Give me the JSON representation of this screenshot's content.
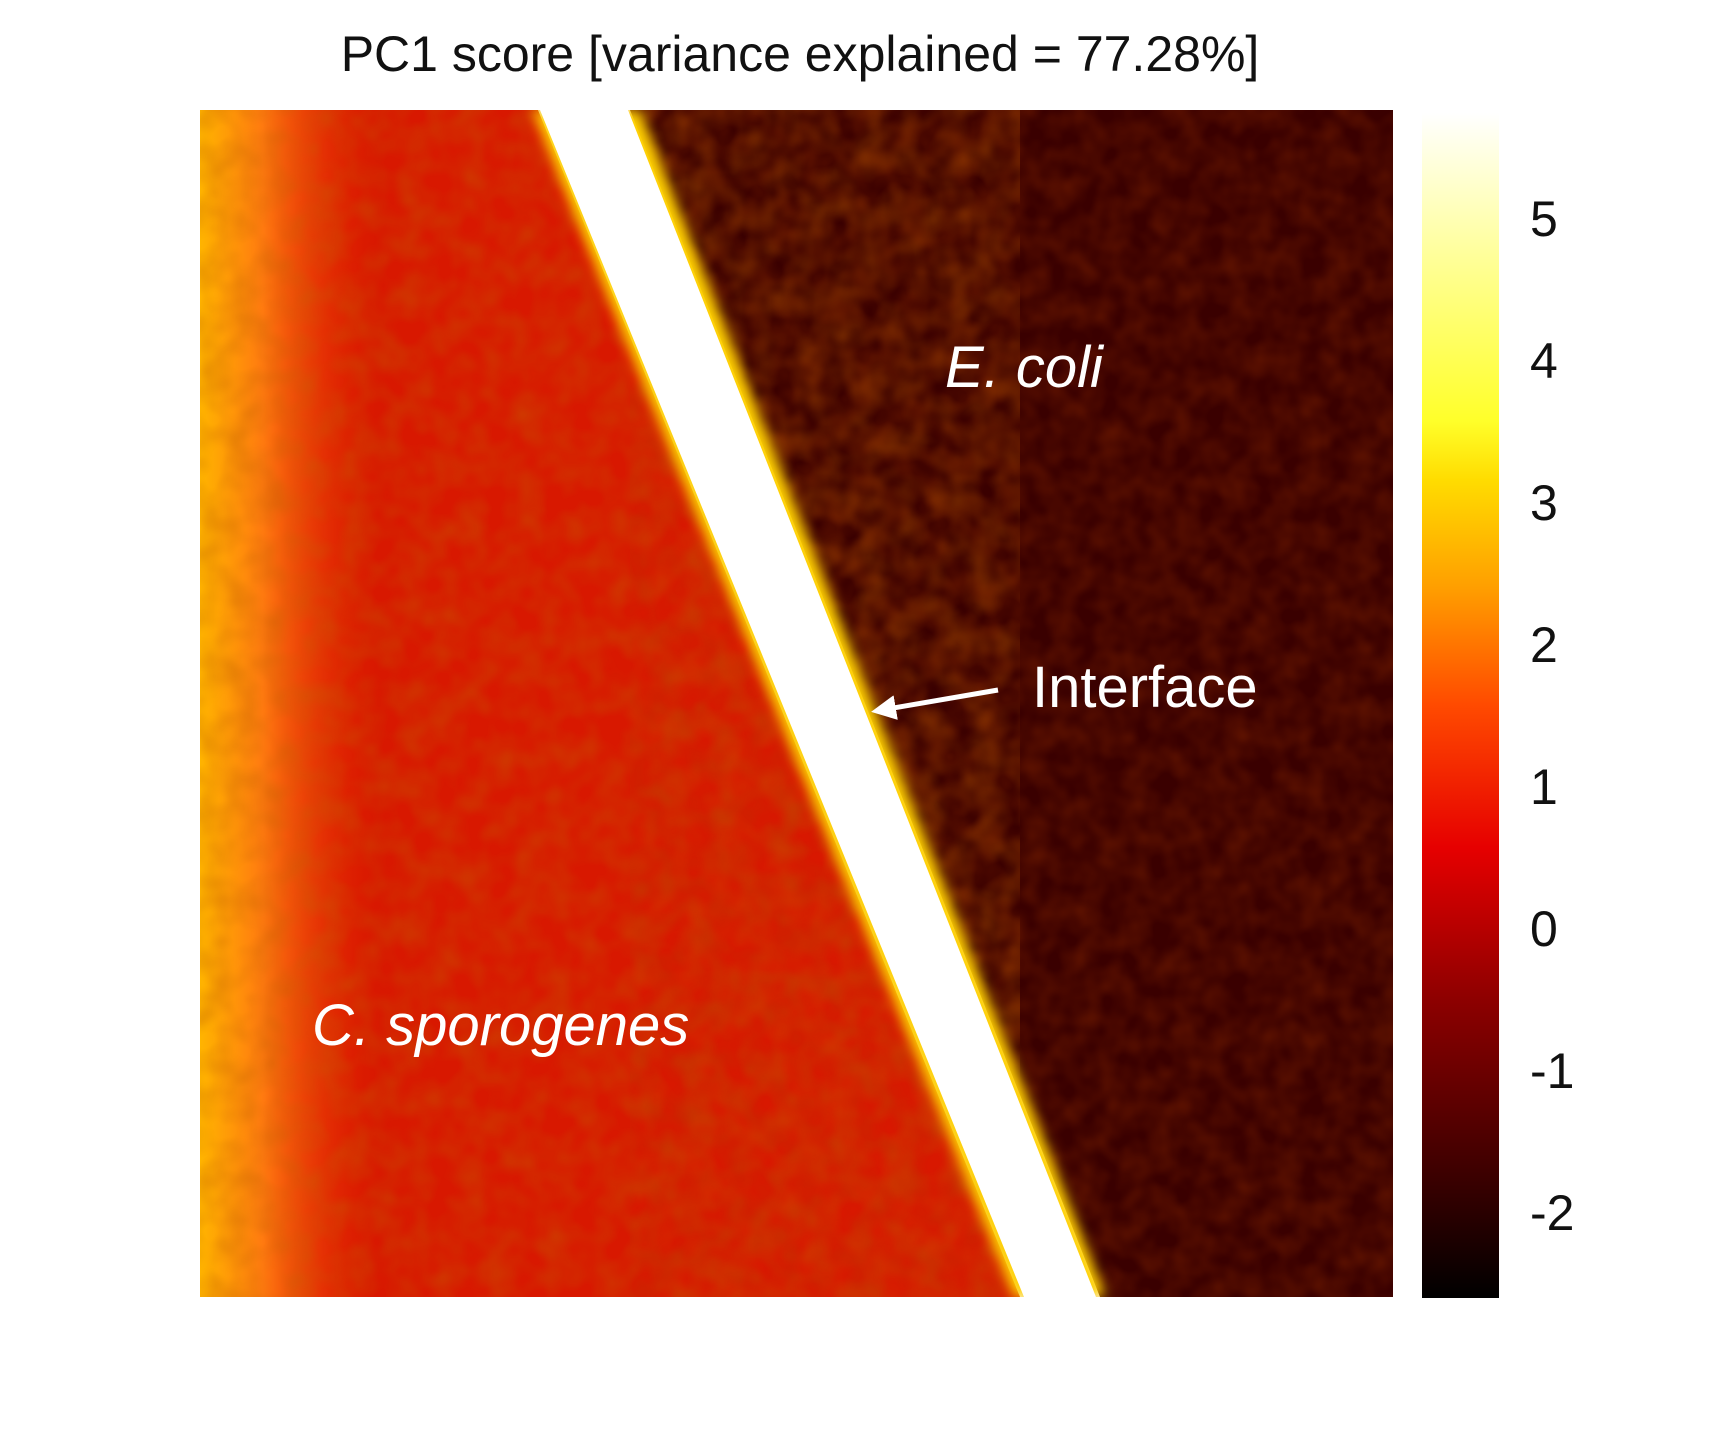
{
  "chart_data": {
    "type": "heatmap",
    "title": "PC1 score [variance explained = 77.28%]",
    "xlabel": "",
    "ylabel": "",
    "colormap": "hot",
    "colorbar": {
      "range": [
        -2.6,
        5.7
      ],
      "ticks": [
        5,
        4,
        3,
        2,
        1,
        0,
        -1,
        -2
      ],
      "tick_labels": [
        "5",
        "4",
        "3",
        "2",
        "1",
        "0",
        "-1",
        "-2"
      ]
    },
    "regions": [
      {
        "name": "C. sporogenes",
        "approx_score": 0.5
      },
      {
        "name": "E. coli",
        "approx_score": -2.1
      },
      {
        "name": "Interface",
        "approx_score": 5.6
      }
    ],
    "annotations": [
      {
        "text": "E. coli",
        "italic": true
      },
      {
        "text": "Interface",
        "italic": false,
        "arrow": true
      },
      {
        "text": "C. sporogenes",
        "italic": true
      }
    ]
  },
  "colors": {
    "colormap_stops": [
      "#000000",
      "#3a0000",
      "#8c0000",
      "#e60000",
      "#ff4a00",
      "#ff9f00",
      "#ffdc00",
      "#ffff2a",
      "#ffff9a",
      "#ffffff"
    ],
    "background": "#ffffff",
    "annotation_text": "#ffffff",
    "title_text": "#111111"
  }
}
